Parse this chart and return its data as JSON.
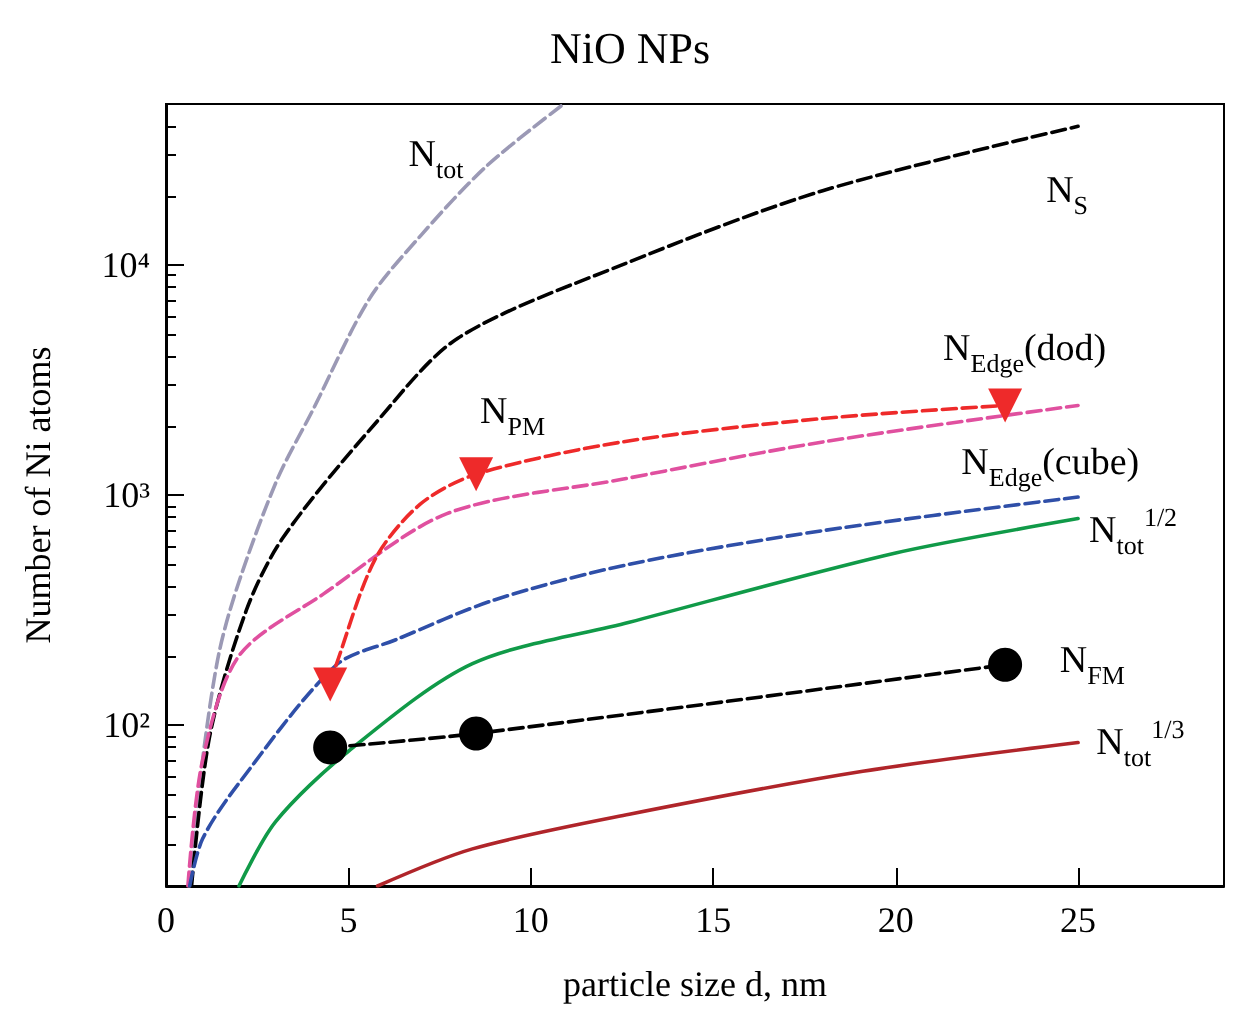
{
  "chart_data": {
    "type": "line",
    "title": "NiO NPs",
    "xlabel": "particle size d, nm",
    "ylabel": "Number of Ni atoms",
    "log": "y",
    "xlim": [
      0,
      29
    ],
    "xticks": [
      0,
      5,
      10,
      15,
      20,
      25
    ],
    "ylim": [
      20,
      50000
    ],
    "yticks": [
      {
        "value": 30,
        "label": null
      },
      {
        "value": 40,
        "label": null
      },
      {
        "value": 50,
        "label": null
      },
      {
        "value": 60,
        "label": null
      },
      {
        "value": 70,
        "label": null
      },
      {
        "value": 80,
        "label": null
      },
      {
        "value": 90,
        "label": null
      },
      {
        "value": 100,
        "label": "10²"
      },
      {
        "value": 200,
        "label": null
      },
      {
        "value": 300,
        "label": null
      },
      {
        "value": 400,
        "label": null
      },
      {
        "value": 500,
        "label": null
      },
      {
        "value": 600,
        "label": null
      },
      {
        "value": 700,
        "label": null
      },
      {
        "value": 800,
        "label": null
      },
      {
        "value": 900,
        "label": null
      },
      {
        "value": 1000,
        "label": "10³"
      },
      {
        "value": 2000,
        "label": null
      },
      {
        "value": 3000,
        "label": null
      },
      {
        "value": 4000,
        "label": null
      },
      {
        "value": 5000,
        "label": null
      },
      {
        "value": 6000,
        "label": null
      },
      {
        "value": 7000,
        "label": null
      },
      {
        "value": 8000,
        "label": null
      },
      {
        "value": 9000,
        "label": null
      },
      {
        "value": 10000,
        "label": "10⁴"
      },
      {
        "value": 20000,
        "label": null
      },
      {
        "value": 30000,
        "label": null
      },
      {
        "value": 40000,
        "label": null
      }
    ],
    "marker": "none",
    "series": [
      {
        "name": "N$_{tot}$",
        "color": "#9b99b5",
        "line_style": "dashed",
        "x": [
          0.65,
          1,
          1.45,
          2,
          3.05,
          4,
          5.57,
          7,
          8.8,
          10.9
        ],
        "values": [
          20,
          70,
          205,
          420,
          1170,
          2300,
          7100,
          13500,
          27000,
          50000
        ]
      },
      {
        "name": "N$_{S}$",
        "color": "#000000",
        "line_style": "dashed",
        "x": [
          0.7,
          1.2,
          2.2,
          3.2,
          5.73,
          8,
          12.5,
          18,
          25
        ],
        "values": [
          20,
          90,
          315,
          650,
          2040,
          4800,
          10000,
          21000,
          40000
        ]
      },
      {
        "name": "N$_{Edge}$(dod)",
        "color": "#e0509f",
        "line_style": "dashed",
        "x": [
          0.6,
          1,
          2,
          4.3,
          7.7,
          12.5,
          18,
          25
        ],
        "values": [
          20,
          70,
          200,
          370,
          830,
          1170,
          1700,
          2450
        ]
      },
      {
        "name": "N$_{Edge}$(cube)",
        "color": "#2f4fa8",
        "line_style": "dashed",
        "x": [
          0.65,
          1,
          2,
          4.66,
          6.3,
          9,
          12.7,
          18,
          25
        ],
        "values": [
          20,
          32,
          56,
          182,
          235,
          350,
          500,
          700,
          980
        ]
      },
      {
        "name": "N$_{tot}$$^{1/2}$",
        "color": "#109a48",
        "line_style": "solid",
        "x": [
          2,
          3,
          5,
          8.4,
          12.7,
          20,
          25
        ],
        "values": [
          20,
          38,
          77,
          185,
          280,
          560,
          790
        ]
      },
      {
        "name": "N$_{tot}$$^{1/3}$",
        "color": "#b0252a",
        "line_style": "solid",
        "x": [
          5.8,
          8.4,
          12.7,
          19.1,
          25
        ],
        "values": [
          20,
          29,
          41,
          63,
          84
        ]
      },
      {
        "type": "line",
        "color": "#ee2a2a",
        "line_style": "dashed",
        "x": [
          4.5,
          4.66,
          5.73,
          6.96,
          8.5,
          12.5,
          18,
          23
        ],
        "values": [
          150,
          182,
          525,
          910,
          1230,
          1700,
          2150,
          2450
        ]
      },
      {
        "type": "scatter",
        "name": "N$_{PM}$",
        "color": "#ee2a2a",
        "marker": "triangle",
        "x": [
          4.5,
          8.5,
          23
        ],
        "values": [
          150,
          1230,
          2450
        ]
      },
      {
        "name": "N$_{FM}$",
        "color": "#000000",
        "line_style": "dashed",
        "marker": "circle",
        "x": [
          4.5,
          8.5,
          23
        ],
        "values": [
          80,
          92,
          183
        ]
      }
    ]
  }
}
